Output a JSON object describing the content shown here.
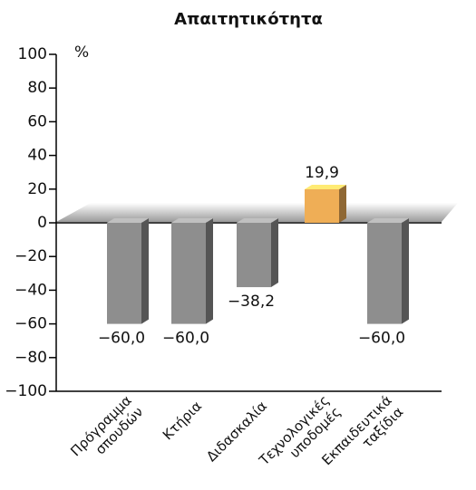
{
  "chart_data": {
    "type": "bar",
    "title": "Απαιτητικότητα",
    "y_label": "%",
    "categories": [
      [
        "Πρόγραμμα",
        "σπουδών"
      ],
      [
        "Κτήρια"
      ],
      [
        "Διδασκαλία"
      ],
      [
        "Τεχνολογικές",
        "υποδομές"
      ],
      [
        "Εκπαιδευτικά",
        "ταξίδια"
      ]
    ],
    "values": [
      -60,
      -60,
      -38.2,
      19.9,
      -60
    ],
    "value_labels": [
      "−60,0",
      "−60,0",
      "−38,2",
      "19,9",
      "−60,0"
    ],
    "colors": [
      "#8e8e8e",
      "#8e8e8e",
      "#8e8e8e",
      "#efae56",
      "#8e8e8e"
    ],
    "ylim": [
      -100,
      100
    ],
    "yticks": [
      {
        "value": -100,
        "label": "−100"
      },
      {
        "value": -80,
        "label": "−80"
      },
      {
        "value": -60,
        "label": "−60"
      },
      {
        "value": -40,
        "label": "−40"
      },
      {
        "value": -20,
        "label": "−20"
      },
      0,
      20,
      40,
      60,
      80,
      100
    ]
  }
}
